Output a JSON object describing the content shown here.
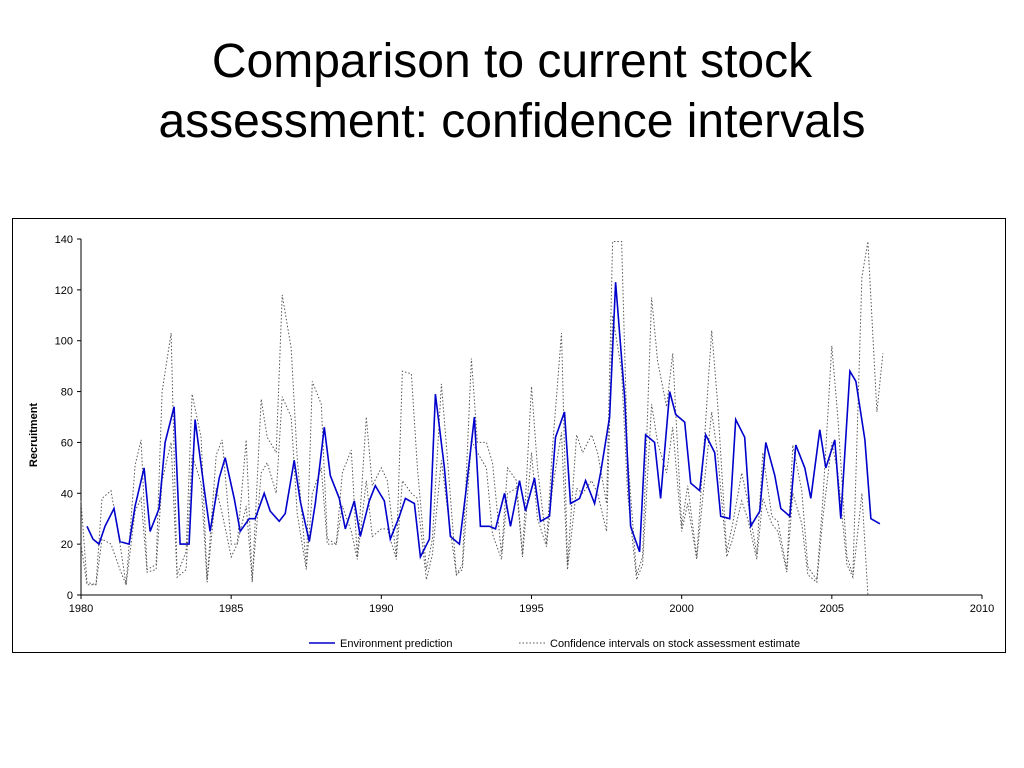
{
  "slide": {
    "title_line1": "Comparison to current stock",
    "title_line2": "assessment: confidence intervals"
  },
  "chart_data": {
    "type": "line",
    "xlabel": "",
    "ylabel": "Recruitment",
    "xlim": [
      1980,
      2010
    ],
    "ylim": [
      0,
      140
    ],
    "xticks": [
      1980,
      1985,
      1990,
      1995,
      2000,
      2005,
      2010
    ],
    "yticks": [
      0,
      20,
      40,
      60,
      80,
      100,
      120,
      140
    ],
    "grid": false,
    "legend_position": "bottom",
    "series": [
      {
        "name": "Environment prediction",
        "style": "solid",
        "color": "#0000cc",
        "x": [
          1980.2,
          1980.4,
          1980.6,
          1980.8,
          1981.1,
          1981.3,
          1981.6,
          1981.8,
          1982.1,
          1982.3,
          1982.6,
          1982.8,
          1983.1,
          1983.3,
          1983.6,
          1983.8,
          1984.1,
          1984.3,
          1984.6,
          1984.8,
          1985.1,
          1985.3,
          1985.6,
          1985.8,
          1986.1,
          1986.3,
          1986.6,
          1986.8,
          1987.1,
          1987.3,
          1987.6,
          1987.8,
          1988.1,
          1988.3,
          1988.6,
          1988.8,
          1989.1,
          1989.3,
          1989.6,
          1989.8,
          1990.1,
          1990.3,
          1990.6,
          1990.8,
          1991.1,
          1991.3,
          1991.6,
          1991.8,
          1992.1,
          1992.3,
          1992.6,
          1992.8,
          1993.1,
          1993.3,
          1993.6,
          1993.8,
          1994.1,
          1994.3,
          1994.6,
          1994.8,
          1995.1,
          1995.3,
          1995.6,
          1995.8,
          1996.1,
          1996.3,
          1996.6,
          1996.8,
          1997.1,
          1997.3,
          1997.6,
          1997.8,
          1998.1,
          1998.3,
          1998.6,
          1998.8,
          1999.1,
          1999.3,
          1999.6,
          1999.8,
          2000.1,
          2000.3,
          2000.6,
          2000.8,
          2001.1,
          2001.3,
          2001.6,
          2001.8,
          2002.1,
          2002.3,
          2002.6,
          2002.8,
          2003.1,
          2003.3,
          2003.6,
          2003.8,
          2004.1,
          2004.3,
          2004.6,
          2004.8,
          2005.1,
          2005.3,
          2005.6,
          2005.8,
          2006.1,
          2006.3,
          2006.6
        ],
        "y": [
          27,
          22,
          20,
          27,
          34,
          21,
          20,
          35,
          50,
          25,
          34,
          60,
          74,
          20,
          20,
          69,
          42,
          25,
          46,
          54,
          38,
          25,
          30,
          30,
          40,
          33,
          29,
          32,
          53,
          37,
          21,
          36,
          66,
          47,
          38,
          26,
          37,
          23,
          37,
          43,
          37,
          22,
          31,
          38,
          36,
          15,
          22,
          79,
          50,
          23,
          20,
          39,
          70,
          27,
          27,
          26,
          40,
          27,
          45,
          33,
          46,
          29,
          31,
          62,
          72,
          36,
          38,
          45,
          36,
          48,
          70,
          123,
          78,
          27,
          17,
          63,
          60,
          38,
          80,
          71,
          68,
          44,
          41,
          63,
          56,
          31,
          30,
          69,
          62,
          27,
          33,
          60,
          47,
          34,
          31,
          59,
          50,
          38,
          65,
          50,
          61,
          30,
          88,
          84,
          61,
          30,
          28
        ]
      },
      {
        "name": "Confidence intervals on stock assessment estimate",
        "style": "dotted",
        "color": "#555555",
        "x": [
          1980.0,
          1980.2,
          1980.5,
          1980.7,
          1981.0,
          1981.3,
          1981.5,
          1981.8,
          1982.0,
          1982.2,
          1982.5,
          1982.7,
          1983.0,
          1983.2,
          1983.5,
          1983.7,
          1984.0,
          1984.2,
          1984.5,
          1984.7,
          1985.0,
          1985.2,
          1985.5,
          1985.7,
          1986.0,
          1986.2,
          1986.5,
          1986.7,
          1987.0,
          1987.2,
          1987.5,
          1987.7,
          1988.0,
          1988.2,
          1988.5,
          1988.7,
          1989.0,
          1989.2,
          1989.5,
          1989.7,
          1990.0,
          1990.2,
          1990.5,
          1990.7,
          1991.0,
          1991.2,
          1991.5,
          1991.7,
          1992.0,
          1992.2,
          1992.5,
          1992.7,
          1993.0,
          1993.2,
          1993.5,
          1993.7,
          1994.0,
          1994.2,
          1994.5,
          1994.7,
          1995.0,
          1995.2,
          1995.5,
          1995.7,
          1996.0,
          1996.2,
          1996.5,
          1996.7,
          1997.0,
          1997.2,
          1997.5,
          1997.7,
          1998.0,
          1998.2,
          1998.5,
          1998.7,
          1999.0,
          1999.2,
          1999.5,
          1999.7,
          2000.0,
          2000.2,
          2000.5,
          2000.7,
          2001.0,
          2001.2,
          2001.5,
          2001.7,
          2002.0,
          2002.2,
          2002.5,
          2002.7,
          2003.0,
          2003.2,
          2003.5,
          2003.7,
          2004.0,
          2004.2,
          2004.5,
          2004.7,
          2005.0,
          2005.2,
          2005.5,
          2005.7,
          2006.0,
          2006.2,
          2006.5,
          2006.7
        ],
        "y": [
          37,
          5,
          4,
          38,
          41,
          20,
          4,
          51,
          61,
          10,
          12,
          80,
          103,
          8,
          17,
          79,
          62,
          6,
          55,
          61,
          20,
          20,
          61,
          5,
          77,
          62,
          56,
          118,
          97,
          54,
          11,
          84,
          75,
          22,
          20,
          48,
          57,
          15,
          70,
          43,
          50,
          45,
          15,
          88,
          87,
          50,
          10,
          22,
          83,
          54,
          8,
          12,
          93,
          60,
          60,
          52,
          16,
          50,
          45,
          16,
          82,
          50,
          20,
          58,
          103,
          12,
          63,
          56,
          63,
          56,
          36,
          139,
          139,
          55,
          8,
          15,
          117,
          92,
          74,
          95,
          27,
          43,
          15,
          51,
          104,
          75,
          17,
          28,
          48,
          37,
          16,
          56,
          31,
          29,
          10,
          59,
          41,
          11,
          6,
          37,
          98,
          70,
          15,
          8,
          125,
          139,
          72,
          95
        ]
      },
      {
        "name": "",
        "style": "dotted",
        "color": "#555555",
        "x": [
          1980.0,
          1980.2,
          1980.5,
          1980.7,
          1981.0,
          1981.3,
          1981.5,
          1981.8,
          1982.0,
          1982.2,
          1982.5,
          1982.7,
          1983.0,
          1983.2,
          1983.5,
          1983.7,
          1984.0,
          1984.2,
          1984.5,
          1984.7,
          1985.0,
          1985.2,
          1985.5,
          1985.7,
          1986.0,
          1986.2,
          1986.5,
          1986.7,
          1987.0,
          1987.2,
          1987.5,
          1987.7,
          1988.0,
          1988.2,
          1988.5,
          1988.7,
          1989.0,
          1989.2,
          1989.5,
          1989.7,
          1990.0,
          1990.2,
          1990.5,
          1990.7,
          1991.0,
          1991.2,
          1991.5,
          1991.7,
          1992.0,
          1992.2,
          1992.5,
          1992.7,
          1993.0,
          1993.2,
          1993.5,
          1993.7,
          1994.0,
          1994.2,
          1994.5,
          1994.7,
          1995.0,
          1995.2,
          1995.5,
          1995.7,
          1996.0,
          1996.2,
          1996.5,
          1996.7,
          1997.0,
          1997.2,
          1997.5,
          1997.7,
          1998.0,
          1998.2,
          1998.5,
          1998.7,
          1999.0,
          1999.2,
          1999.5,
          1999.7,
          2000.0,
          2000.2,
          2000.5,
          2000.7,
          2001.0,
          2001.2,
          2001.5,
          2001.7,
          2002.0,
          2002.2,
          2002.5,
          2002.7,
          2003.0,
          2003.2,
          2003.5,
          2003.7,
          2004.0,
          2004.2,
          2004.5,
          2004.7,
          2005.0,
          2005.2,
          2005.5,
          2005.7,
          2006.0,
          2006.2
        ],
        "y": [
          20,
          4,
          4,
          22,
          20,
          10,
          4,
          33,
          38,
          9,
          10,
          45,
          60,
          7,
          10,
          55,
          44,
          5,
          42,
          32,
          15,
          20,
          35,
          6,
          48,
          52,
          40,
          78,
          70,
          32,
          10,
          40,
          50,
          20,
          20,
          35,
          25,
          14,
          45,
          23,
          26,
          26,
          14,
          45,
          40,
          38,
          6,
          16,
          53,
          34,
          8,
          10,
          61,
          56,
          50,
          24,
          14,
          40,
          42,
          15,
          56,
          30,
          19,
          42,
          64,
          10,
          42,
          40,
          45,
          40,
          25,
          110,
          88,
          40,
          6,
          12,
          75,
          60,
          48,
          66,
          25,
          36,
          14,
          38,
          72,
          55,
          15,
          22,
          37,
          30,
          14,
          38,
          28,
          25,
          9,
          40,
          28,
          8,
          5,
          30,
          60,
          48,
          12,
          7,
          40,
          0
        ]
      }
    ]
  }
}
